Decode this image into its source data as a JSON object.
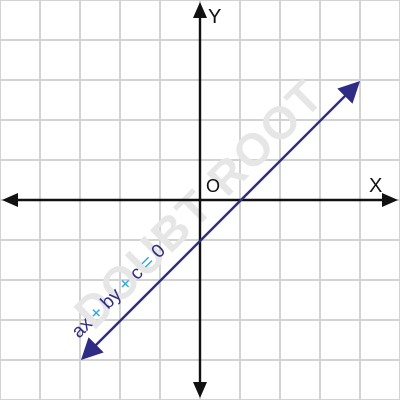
{
  "watermark": "DOUBT ROOT",
  "labels": {
    "x_axis": "X",
    "y_axis": "Y",
    "origin": "O"
  },
  "equation": {
    "parts": [
      "ax",
      "+",
      "by",
      "+",
      "c",
      "=",
      "0"
    ]
  },
  "colors": {
    "grid": "#d2d2d2",
    "axis": "#111111",
    "line": "#2e2c85",
    "operator": "#29a8e0",
    "watermark": "#e6e6e6"
  }
}
